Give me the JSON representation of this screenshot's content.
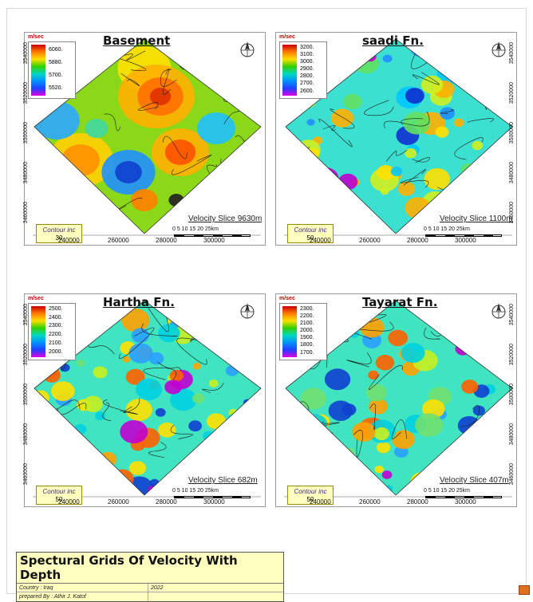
{
  "panels": [
    {
      "title": "Basement",
      "unit": "m/sec",
      "legend_ticks": [
        "6060.",
        "5880.",
        "5700.",
        "5520."
      ],
      "velocity_slice": "Velocity Slice 9630m",
      "contour_label": "Contour inc",
      "contour_value": "30",
      "scale_labels": "0  5  10  15  20  25km",
      "x_ticks": [
        "240000",
        "260000",
        "280000",
        "300000"
      ],
      "y_ticks": [
        "3540000",
        "3520000",
        "3500000",
        "3480000",
        "3460000"
      ],
      "palette": "smooth"
    },
    {
      "title": "saadi Fn.",
      "unit": "m/sec",
      "legend_ticks": [
        "3200.",
        "3100.",
        "3000.",
        "2900.",
        "2800.",
        "2700.",
        "2600."
      ],
      "velocity_slice": "Velocity Slice 1100m",
      "contour_label": "Contour inc",
      "contour_value": "50",
      "scale_labels": "0  5  10  15  20  25km",
      "x_ticks": [
        "240000",
        "260000",
        "280000",
        "300000"
      ],
      "y_ticks": [
        "3540000",
        "3520000",
        "3500000",
        "3480000",
        "3460000"
      ],
      "palette": "noisy-blue"
    },
    {
      "title": "Hartha Fn.",
      "unit": "m/sec",
      "legend_ticks": [
        "2500.",
        "2400.",
        "2300.",
        "2200.",
        "2100.",
        "2000."
      ],
      "velocity_slice": "Velocity Slice 682m",
      "contour_label": "Contour inc",
      "contour_value": "50",
      "scale_labels": "0  5  10  15  20  25km",
      "x_ticks": [
        "240000",
        "260000",
        "280000",
        "300000"
      ],
      "y_ticks": [
        "3540000",
        "3520000",
        "3500000",
        "3480000",
        "3460000"
      ],
      "palette": "noisy-green"
    },
    {
      "title": "Tayarat Fn.",
      "unit": "m/sec",
      "legend_ticks": [
        "2300.",
        "2200.",
        "2100.",
        "2000.",
        "1900.",
        "1800.",
        "1700."
      ],
      "velocity_slice": "Velocity Slice 407m",
      "contour_label": "Contour inc",
      "contour_value": "50",
      "scale_labels": "0  5  10  15  20  25km",
      "x_ticks": [
        "240000",
        "260000",
        "280000",
        "300000"
      ],
      "y_ticks": [
        "3540000",
        "3520000",
        "3500000",
        "3480000",
        "3460000"
      ],
      "palette": "noisy-green"
    }
  ],
  "title_block": {
    "title": "Spectural Grids Of Velocity With Depth",
    "country": "Country : Iraq",
    "year": "2022",
    "prepared_by": "prepared By : Athir J. Katof"
  }
}
